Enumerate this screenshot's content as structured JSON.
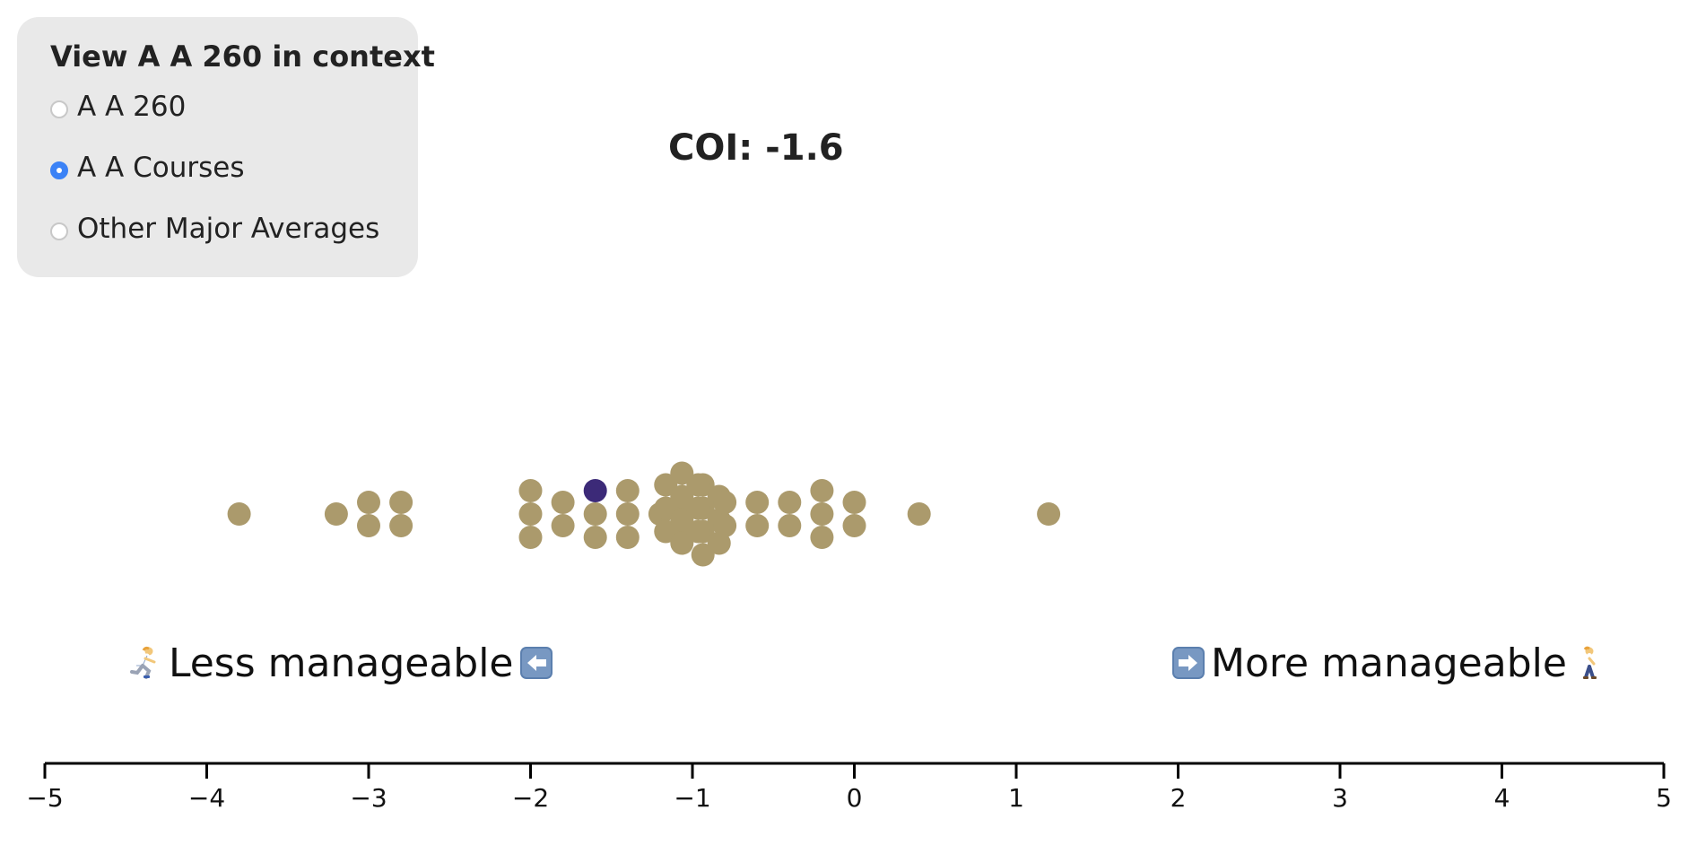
{
  "panel": {
    "title": "View A A 260 in context",
    "options": [
      {
        "label": "A A 260",
        "checked": false
      },
      {
        "label": "A A Courses",
        "checked": true
      },
      {
        "label": "Other Major Averages",
        "checked": false
      }
    ]
  },
  "score_title": "COI: -1.6",
  "direction_labels": {
    "less": "Less manageable",
    "more": "More manageable",
    "less_icons": [
      "runner-icon",
      "left-arrow-icon"
    ],
    "more_icons": [
      "right-arrow-icon",
      "walker-icon"
    ]
  },
  "colors": {
    "dot": "#ab9a6c",
    "highlight": "#3c2a78",
    "axis": "#000000",
    "panel_bg": "#e9e9e9",
    "radio_checked": "#3b82f6"
  },
  "chart_data": {
    "type": "scatter",
    "subtype": "beeswarm",
    "x_range": [
      -5,
      5
    ],
    "ticks": [
      "−5",
      "−4",
      "−3",
      "−2",
      "−1",
      "0",
      "1",
      "2",
      "3",
      "4",
      "5"
    ],
    "highlight_value": -1.6,
    "values": [
      -3.8,
      -3.2,
      -3.0,
      -3.0,
      -2.8,
      -2.8,
      -2.0,
      -2.0,
      -2.0,
      -1.8,
      -1.8,
      -1.6,
      -1.6,
      -1.6,
      -1.4,
      -1.4,
      -1.4,
      -1.2,
      -1.1,
      -1.1,
      -1.1,
      -1.1,
      -1.1,
      -1.0,
      -1.0,
      -1.0,
      -1.0,
      -1.0,
      -1.0,
      -1.0,
      -1.0,
      -0.9,
      -0.9,
      -0.9,
      -0.9,
      -0.9,
      -0.9,
      -0.8,
      -0.8,
      -0.6,
      -0.6,
      -0.4,
      -0.4,
      -0.2,
      -0.2,
      -0.2,
      0.0,
      0.0,
      0.4,
      1.2
    ]
  }
}
